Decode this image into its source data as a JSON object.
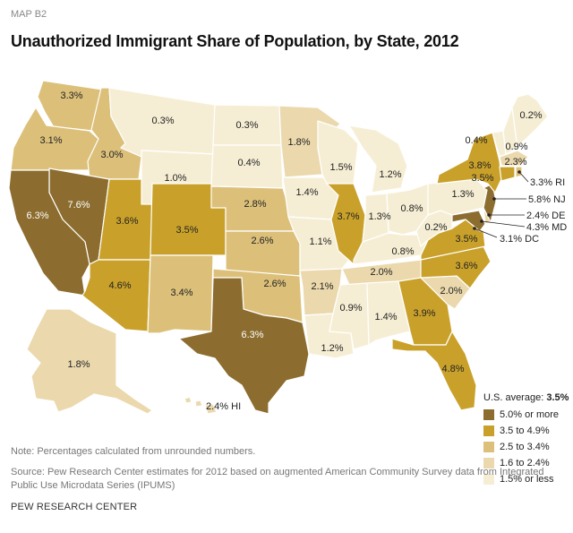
{
  "header": {
    "map_label": "MAP B2",
    "title": "Unauthorized Immigrant Share of Population, by State, 2012"
  },
  "colors": {
    "c5": "#8c6d2f",
    "c35": "#c9a12a",
    "c25": "#dcc07a",
    "c16": "#ebd9ad",
    "c15": "#f6eed4"
  },
  "states": {
    "WA": "3.3%",
    "OR": "3.1%",
    "ID": "3.0%",
    "MT": "0.3%",
    "WY": "1.0%",
    "CA": "6.3%",
    "NV": "7.6%",
    "UT": "3.6%",
    "CO": "3.5%",
    "AZ": "4.6%",
    "NM": "3.4%",
    "ND": "0.3%",
    "SD": "0.4%",
    "NE": "2.8%",
    "KS": "2.6%",
    "OK": "2.6%",
    "TX": "6.3%",
    "MN": "1.8%",
    "IA": "1.4%",
    "MO": "1.1%",
    "AR": "2.1%",
    "LA": "1.2%",
    "WI": "1.5%",
    "IL": "3.7%",
    "MI": "1.2%",
    "IN": "1.3%",
    "OH": "0.8%",
    "KY": "0.8%",
    "TN": "2.0%",
    "MS": "0.9%",
    "AL": "1.4%",
    "GA": "3.9%",
    "FL": "4.8%",
    "SC": "2.0%",
    "NC": "3.6%",
    "VA": "3.5%",
    "WV": "0.2%",
    "PA": "1.3%",
    "NY": "3.8%",
    "VT": "0.4%",
    "NH": "0.9%",
    "ME": "0.2%",
    "MA": "2.3%",
    "CT": "3.5%",
    "AK": "1.8%"
  },
  "callouts": {
    "RI": "3.3% RI",
    "NJ": "5.8% NJ",
    "DE": "2.4% DE",
    "MD": "4.3% MD",
    "DC": "3.1% DC",
    "HI": "2.4% HI"
  },
  "legend": {
    "title_prefix": "U.S. average: ",
    "title_value": "3.5%",
    "items": [
      {
        "label": "5.0% or more",
        "color": "#8c6d2f"
      },
      {
        "label": "3.5 to 4.9%",
        "color": "#c9a12a"
      },
      {
        "label": "2.5 to 3.4%",
        "color": "#dcc07a"
      },
      {
        "label": "1.6 to 2.4%",
        "color": "#ebd9ad"
      },
      {
        "label": "1.5% or less",
        "color": "#f6eed4"
      }
    ]
  },
  "footer": {
    "note": "Note: Percentages calculated from unrounded numbers.",
    "source": "Source: Pew Research Center estimates for 2012 based on augmented American Community Survey data from Integrated Public Use Microdata Series (IPUMS)",
    "credit": "PEW RESEARCH CENTER"
  }
}
